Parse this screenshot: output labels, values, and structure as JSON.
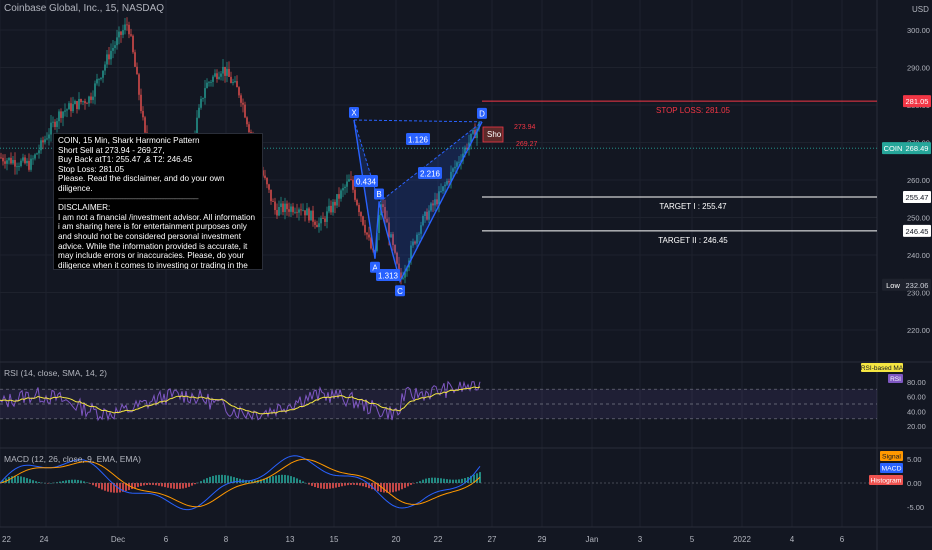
{
  "header": {
    "title": "Coinbase Global, Inc., 15, NASDAQ",
    "currency": "USD"
  },
  "price_axis": {
    "ticks": [
      "300.00",
      "290.00",
      "280.00",
      "270.00",
      "260.00",
      "250.00",
      "240.00",
      "230.00",
      "220.00"
    ],
    "tick_values": [
      300,
      290,
      280,
      270,
      260,
      250,
      240,
      230,
      220
    ],
    "badges": [
      {
        "text": "281.05",
        "value": 281.05,
        "color": "#f23645",
        "text_color": "#ffffff"
      },
      {
        "text": "268.49",
        "value": 268.49,
        "color": "#26a69a",
        "text_color": "#ffffff"
      },
      {
        "text": "255.47",
        "value": 255.47,
        "color": "#ffffff",
        "text_color": "#131722"
      },
      {
        "text": "246.45",
        "value": 246.45,
        "color": "#ffffff",
        "text_color": "#131722"
      },
      {
        "text": "232.06",
        "value": 232.06,
        "color": "#1e222d",
        "text_color": "#d1d4dc"
      }
    ],
    "side_labels": [
      {
        "text": "COIN",
        "value": 268.49,
        "color": "#26a69a"
      },
      {
        "text": "Low",
        "value": 232.06,
        "color": "#1e222d"
      }
    ]
  },
  "levels": [
    {
      "label": "STOP LOSS: 281.05",
      "value": 281.05,
      "color": "#f23645"
    },
    {
      "label": "TARGET I : 255.47",
      "value": 255.47,
      "color": "#ffffff"
    },
    {
      "label": "TARGET II : 246.45",
      "value": 246.45,
      "color": "#ffffff"
    }
  ],
  "pattern": {
    "points": [
      {
        "name": "X",
        "value": 276
      },
      {
        "name": "A",
        "value": 239
      },
      {
        "name": "B",
        "value": 254
      },
      {
        "name": "C",
        "value": 233
      },
      {
        "name": "D",
        "value": 275.5
      }
    ],
    "ratios": [
      "1.126",
      "0.434",
      "2.216",
      "1.313"
    ],
    "short_label": "Sho",
    "entry_high": "273.94",
    "entry_low": "269.27"
  },
  "note": {
    "lines": [
      "COIN, 15 Min, Shark Harmonic Pattern",
      "Short Sell at 273.94 - 269.27,",
      "Buy Back atT1: 255.47 ,& T2: 246.45",
      "Stop Loss: 281.05",
      "Please. Read the disclaimer, and do your own diligence.",
      "---------------------------------------------------------------------------------",
      "DISCLAIMER:",
      "I am not a financial /investment advisor. All information i am sharing here is for entertainment purposes only and should not be considered personal investment advice. While the information provided is accurate, it may include errors or inaccuracies. Please, do your diligence when it comes to investing or trading in the market. You are responsible on your choice. Thank you"
    ]
  },
  "rsi": {
    "label": "RSI (14, close, SMA, 14, 2)",
    "ticks": [
      "80.00",
      "60.00",
      "40.00",
      "20.00"
    ],
    "tick_values": [
      80,
      60,
      40,
      20
    ],
    "tags": [
      {
        "text": "RSI-based MA",
        "color": "#f5e642",
        "text_color": "#131722"
      },
      {
        "text": "RSI",
        "color": "#7e57c2",
        "text_color": "#ffffff"
      }
    ]
  },
  "macd": {
    "label": "MACD (12, 26, close, 9, EMA, EMA)",
    "ticks": [
      "5.00",
      "0.00",
      "-5.00"
    ],
    "tick_values": [
      5,
      0,
      -5
    ],
    "tags": [
      {
        "text": "Signal",
        "color": "#ff9800",
        "text_color": "#131722"
      },
      {
        "text": "MACD",
        "color": "#2962ff",
        "text_color": "#ffffff"
      },
      {
        "text": "Histogram",
        "color": "#ef5350",
        "text_color": "#ffffff"
      }
    ]
  },
  "time_axis": {
    "labels": [
      "22",
      "24",
      "Dec",
      "6",
      "8",
      "13",
      "15",
      "20",
      "22",
      "27",
      "29",
      "Jan",
      "3",
      "5",
      "2022",
      "4",
      "6"
    ],
    "label_texts": [
      "22",
      "24",
      "Dec",
      "6",
      "8",
      "13",
      "15",
      "20",
      "22",
      "27",
      "29",
      "Jan",
      "3",
      "5",
      "2022",
      "4",
      "6"
    ]
  },
  "colors": {
    "background": "#131722",
    "grid": "#1e222d",
    "up": "#26a69a",
    "down": "#ef5350",
    "pattern": "#2962ff",
    "rsi_line": "#7e57c2",
    "rsi_ma": "#f5e642",
    "macd": "#2962ff",
    "signal": "#ff9800"
  }
}
